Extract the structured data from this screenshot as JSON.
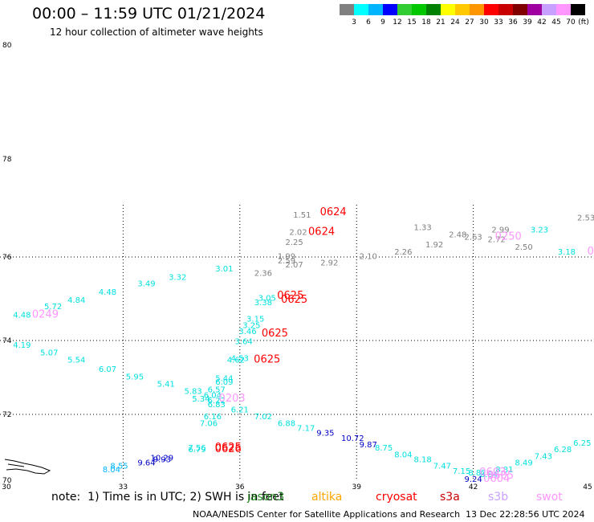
{
  "header": {
    "title": "00:00 – 11:59 UTC 01/21/2024",
    "subtitle": "12 hour collection of altimeter wave heights"
  },
  "legend": {
    "labels": [
      "3",
      "6",
      "9",
      "12",
      "15",
      "18",
      "21",
      "24",
      "27",
      "30",
      "33",
      "36",
      "39",
      "42",
      "45",
      "70"
    ],
    "unit": "(ft)",
    "colors": [
      "#808080",
      "#00ffff",
      "#00b4ff",
      "#0000ff",
      "#32cd32",
      "#00c800",
      "#008000",
      "#ffff00",
      "#ffc800",
      "#ff9600",
      "#ff0000",
      "#c80000",
      "#800000",
      "#a000a0",
      "#c8a0ff",
      "#ff96ff",
      "#000000"
    ]
  },
  "footer": {
    "note": "note:  1) Time is in UTC; 2) SWH is in feet",
    "satellites": [
      {
        "name": "jason3",
        "color": "#228b22"
      },
      {
        "name": "altika",
        "color": "#ffa500"
      },
      {
        "name": "cryosat",
        "color": "#ff0000"
      },
      {
        "name": "s3a",
        "color": "#c80000"
      },
      {
        "name": "s3b",
        "color": "#c8a0ff"
      },
      {
        "name": "swot",
        "color": "#ff96ff"
      }
    ],
    "credit": "NOAA/NESDIS Center for Satellite Applications and Research",
    "generated": "13 Dec 22:28:56 UTC 2024"
  },
  "chart_data": {
    "type": "scatter",
    "title": "00:00 – 11:59 UTC 01/21/2024",
    "subtitle": "12 hour collection of altimeter wave heights",
    "x_ticks": [
      "30",
      "33",
      "36",
      "39",
      "42",
      "45"
    ],
    "y_ticks": [
      "70",
      "72",
      "74",
      "76",
      "78",
      "80"
    ],
    "xlim": [
      30,
      45
    ],
    "ylim": [
      70,
      80
    ],
    "grid": true,
    "series": [
      {
        "name": "",
        "color": "#808080",
        "points": [
          {
            "x": 37.6,
            "y": 76.8,
            "label": "1.51"
          },
          {
            "x": 37.5,
            "y": 76.45,
            "label": "2.02"
          },
          {
            "x": 37.4,
            "y": 76.25,
            "label": "2.25"
          },
          {
            "x": 37.2,
            "y": 75.95,
            "label": "1.99"
          },
          {
            "x": 37.2,
            "y": 75.85,
            "label": "2.59"
          },
          {
            "x": 37.4,
            "y": 75.75,
            "label": "2.07"
          },
          {
            "x": 38.3,
            "y": 75.8,
            "label": "2.92"
          },
          {
            "x": 36.6,
            "y": 75.55,
            "label": "2.36"
          },
          {
            "x": 39.3,
            "y": 75.95,
            "label": "2.10"
          },
          {
            "x": 40.2,
            "y": 76.05,
            "label": "2.26"
          },
          {
            "x": 41.0,
            "y": 76.2,
            "label": "1.92"
          },
          {
            "x": 40.7,
            "y": 76.55,
            "label": "1.33"
          },
          {
            "x": 41.6,
            "y": 76.4,
            "label": "2.48"
          },
          {
            "x": 42.0,
            "y": 76.35,
            "label": "2.63"
          },
          {
            "x": 42.7,
            "y": 76.5,
            "label": "2.99"
          },
          {
            "x": 42.6,
            "y": 76.3,
            "label": "2.72"
          },
          {
            "x": 43.3,
            "y": 76.15,
            "label": "2.50"
          },
          {
            "x": 44.9,
            "y": 76.75,
            "label": "2.53"
          }
        ]
      },
      {
        "name": "",
        "color": "#00e0e0",
        "points": [
          {
            "x": 30.4,
            "y": 74.55,
            "label": "4.48"
          },
          {
            "x": 31.2,
            "y": 74.75,
            "label": "5.72"
          },
          {
            "x": 31.8,
            "y": 74.9,
            "label": "4.84"
          },
          {
            "x": 32.6,
            "y": 75.1,
            "label": "4.48"
          },
          {
            "x": 33.6,
            "y": 75.3,
            "label": "3.49"
          },
          {
            "x": 34.4,
            "y": 75.45,
            "label": "3.32"
          },
          {
            "x": 35.6,
            "y": 75.65,
            "label": "3.01"
          },
          {
            "x": 36.7,
            "y": 74.95,
            "label": "3.05"
          },
          {
            "x": 36.6,
            "y": 74.85,
            "label": "3.38"
          },
          {
            "x": 36.4,
            "y": 74.45,
            "label": "3.15"
          },
          {
            "x": 36.3,
            "y": 74.3,
            "label": "3.25"
          },
          {
            "x": 36.2,
            "y": 74.15,
            "label": "3.46"
          },
          {
            "x": 36.1,
            "y": 73.9,
            "label": "3.64"
          },
          {
            "x": 36.0,
            "y": 73.45,
            "label": "4.53"
          },
          {
            "x": 35.9,
            "y": 73.4,
            "label": "4.62"
          },
          {
            "x": 30.4,
            "y": 73.8,
            "label": "4.19"
          },
          {
            "x": 31.1,
            "y": 73.6,
            "label": "5.07"
          },
          {
            "x": 31.8,
            "y": 73.4,
            "label": "5.54"
          },
          {
            "x": 32.6,
            "y": 73.15,
            "label": "6.07"
          },
          {
            "x": 33.3,
            "y": 72.95,
            "label": "5.95"
          },
          {
            "x": 34.1,
            "y": 72.75,
            "label": "5.41"
          },
          {
            "x": 34.8,
            "y": 72.55,
            "label": "5.83"
          },
          {
            "x": 35.6,
            "y": 72.9,
            "label": "5.44"
          },
          {
            "x": 35.6,
            "y": 72.8,
            "label": "6.09"
          },
          {
            "x": 35.4,
            "y": 72.6,
            "label": "6.57"
          },
          {
            "x": 35.3,
            "y": 72.45,
            "label": "6.04"
          },
          {
            "x": 35.0,
            "y": 72.35,
            "label": "5.34"
          },
          {
            "x": 35.4,
            "y": 72.3,
            "label": "6.22"
          },
          {
            "x": 35.4,
            "y": 72.2,
            "label": "6.83"
          },
          {
            "x": 36.0,
            "y": 72.05,
            "label": "6.21"
          },
          {
            "x": 35.3,
            "y": 71.85,
            "label": "6.16"
          },
          {
            "x": 35.2,
            "y": 71.65,
            "label": "7.06"
          },
          {
            "x": 36.6,
            "y": 71.85,
            "label": "7.02"
          },
          {
            "x": 37.2,
            "y": 71.65,
            "label": "6.88"
          },
          {
            "x": 37.7,
            "y": 71.5,
            "label": "7.17"
          },
          {
            "x": 34.9,
            "y": 70.9,
            "label": "7.56"
          },
          {
            "x": 34.9,
            "y": 70.85,
            "label": "6.79"
          },
          {
            "x": 39.7,
            "y": 70.9,
            "label": "8.75"
          },
          {
            "x": 40.2,
            "y": 70.7,
            "label": "8.04"
          },
          {
            "x": 40.7,
            "y": 70.55,
            "label": "8.18"
          },
          {
            "x": 41.2,
            "y": 70.35,
            "label": "7.47"
          },
          {
            "x": 41.7,
            "y": 70.2,
            "label": "7.15"
          },
          {
            "x": 43.3,
            "y": 70.45,
            "label": "8.49"
          },
          {
            "x": 43.8,
            "y": 70.65,
            "label": "7.43"
          },
          {
            "x": 44.3,
            "y": 70.85,
            "label": "6.28"
          },
          {
            "x": 44.8,
            "y": 71.05,
            "label": "6.25"
          },
          {
            "x": 43.7,
            "y": 76.5,
            "label": "3.23"
          },
          {
            "x": 44.4,
            "y": 76.05,
            "label": "3.18"
          },
          {
            "x": 42.8,
            "y": 70.25,
            "label": "8.81"
          },
          {
            "x": 42.1,
            "y": 70.15,
            "label": "8.82"
          },
          {
            "x": 42.4,
            "y": 70.1,
            "label": "8.84"
          }
        ]
      },
      {
        "name": "",
        "color": "#00b4ff",
        "points": [
          {
            "x": 32.7,
            "y": 70.25,
            "label": "8.04"
          },
          {
            "x": 32.9,
            "y": 70.35,
            "label": "8.55"
          }
        ]
      },
      {
        "name": "",
        "color": "#0000c8",
        "points": [
          {
            "x": 34.0,
            "y": 70.6,
            "label": "10.29"
          },
          {
            "x": 34.0,
            "y": 70.55,
            "label": "9.93"
          },
          {
            "x": 33.6,
            "y": 70.45,
            "label": "9.64"
          },
          {
            "x": 38.2,
            "y": 71.35,
            "label": "9.35"
          },
          {
            "x": 38.9,
            "y": 71.2,
            "label": "10.72"
          },
          {
            "x": 39.3,
            "y": 71.0,
            "label": "9.87"
          },
          {
            "x": 42.0,
            "y": 69.95,
            "label": "9.24"
          }
        ]
      },
      {
        "name": "",
        "color": "#ff0000",
        "points": [
          {
            "x": 38.4,
            "y": 76.85,
            "label": "0624"
          },
          {
            "x": 38.1,
            "y": 76.45,
            "label": "0624"
          },
          {
            "x": 37.3,
            "y": 75.0,
            "label": "0625"
          },
          {
            "x": 37.4,
            "y": 74.9,
            "label": "0625"
          },
          {
            "x": 36.9,
            "y": 74.1,
            "label": "0625"
          },
          {
            "x": 36.7,
            "y": 73.4,
            "label": "0625"
          },
          {
            "x": 35.7,
            "y": 70.9,
            "label": "0625"
          },
          {
            "x": 35.7,
            "y": 70.85,
            "label": "0626"
          }
        ]
      },
      {
        "name": "",
        "color": "#ff96ff",
        "points": [
          {
            "x": 31.0,
            "y": 74.55,
            "label": "0249"
          },
          {
            "x": 35.8,
            "y": 72.35,
            "label": "0203"
          },
          {
            "x": 42.9,
            "y": 76.35,
            "label": "0250"
          },
          {
            "x": 45.1,
            "y": 76.05,
            "label": "02"
          },
          {
            "x": 42.5,
            "y": 70.15,
            "label": "0603"
          },
          {
            "x": 42.7,
            "y": 70.05,
            "label": "0605"
          },
          {
            "x": 42.6,
            "y": 69.95,
            "label": "0604"
          }
        ]
      }
    ]
  }
}
